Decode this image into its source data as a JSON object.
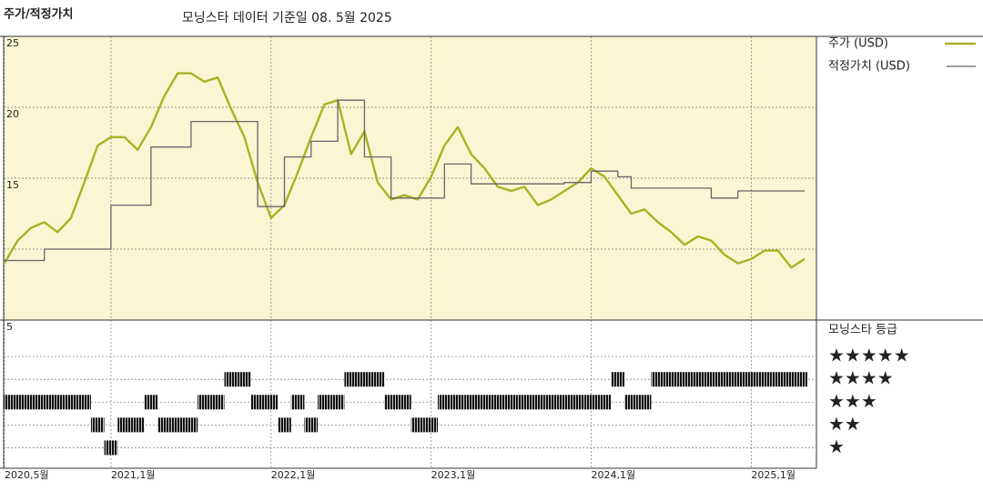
{
  "chart_data": [
    {
      "type": "line",
      "title": "주가/적정가치",
      "subtitle": "모닝스타 데이터 기준일 08. 5월 2025",
      "x": [
        "2020-05",
        "2020-06",
        "2020-07",
        "2020-08",
        "2020-09",
        "2020-10",
        "2020-11",
        "2020-12",
        "2021-01",
        "2021-02",
        "2021-03",
        "2021-04",
        "2021-05",
        "2021-06",
        "2021-07",
        "2021-08",
        "2021-09",
        "2021-10",
        "2021-11",
        "2021-12",
        "2022-01",
        "2022-02",
        "2022-03",
        "2022-04",
        "2022-05",
        "2022-06",
        "2022-07",
        "2022-08",
        "2022-09",
        "2022-10",
        "2022-11",
        "2022-12",
        "2023-01",
        "2023-02",
        "2023-03",
        "2023-04",
        "2023-05",
        "2023-06",
        "2023-07",
        "2023-08",
        "2023-09",
        "2023-10",
        "2023-11",
        "2023-12",
        "2024-01",
        "2024-02",
        "2024-03",
        "2024-04",
        "2024-05",
        "2024-06",
        "2024-07",
        "2024-08",
        "2024-09",
        "2024-10",
        "2024-11",
        "2024-12",
        "2025-01",
        "2025-02",
        "2025-03",
        "2025-04",
        "2025-05"
      ],
      "series": [
        {
          "name": "주가 (USD)",
          "color": "#a9b225",
          "values": [
            9.0,
            10.6,
            11.5,
            11.9,
            11.2,
            12.2,
            14.7,
            17.3,
            17.9,
            17.9,
            17.0,
            18.6,
            20.8,
            22.4,
            22.4,
            21.8,
            22.1,
            19.9,
            17.9,
            14.7,
            12.2,
            13.1,
            15.4,
            17.9,
            20.2,
            20.5,
            16.7,
            18.3,
            14.7,
            13.5,
            13.8,
            13.5,
            15.1,
            17.3,
            18.6,
            16.7,
            15.7,
            14.4,
            14.1,
            14.4,
            13.1,
            13.5,
            14.1,
            14.7,
            15.7,
            15.1,
            13.8,
            12.5,
            12.8,
            11.9,
            11.2,
            10.3,
            10.9,
            10.6,
            9.6,
            9.0,
            9.3,
            9.9,
            9.9,
            8.7,
            9.3
          ]
        },
        {
          "name": "적정가치 (USD)",
          "color": "#666666",
          "values": [
            9.2,
            9.2,
            9.2,
            10.0,
            10.0,
            10.0,
            10.0,
            10.0,
            13.1,
            13.1,
            13.1,
            17.2,
            17.2,
            17.2,
            19.0,
            19.0,
            19.0,
            19.0,
            19.0,
            13.0,
            13.0,
            16.5,
            16.5,
            17.6,
            17.6,
            20.5,
            20.5,
            16.5,
            16.5,
            13.6,
            13.6,
            13.6,
            13.6,
            16.0,
            16.0,
            14.6,
            14.6,
            14.6,
            14.6,
            14.6,
            14.6,
            14.6,
            14.7,
            14.7,
            15.5,
            15.5,
            15.1,
            14.3,
            14.3,
            14.3,
            14.3,
            14.3,
            14.3,
            13.6,
            13.6,
            14.1,
            14.1,
            14.1,
            14.1,
            14.1,
            14.1
          ]
        }
      ],
      "ylim": [
        5,
        25
      ],
      "yticks": [
        5,
        {
          "value": 10,
          "label": null
        },
        15,
        20,
        25
      ],
      "xticks": [
        {
          "value": "2020-05",
          "label": "2020,5월"
        },
        {
          "value": "2021-01",
          "label": "2021,1월"
        },
        {
          "value": "2022-01",
          "label": "2022,1월"
        },
        {
          "value": "2023-01",
          "label": "2023,1월"
        },
        {
          "value": "2024-01",
          "label": "2024,1월"
        },
        {
          "value": "2025-01",
          "label": "2025,1월"
        }
      ],
      "grid": true,
      "background": "#faf6d3"
    },
    {
      "type": "rating",
      "title": "모닝스타 등급",
      "color": "#111111",
      "values": [
        3,
        3,
        3,
        3,
        3,
        3,
        3,
        2,
        1,
        2,
        2,
        3,
        2,
        2,
        2,
        3,
        3,
        4,
        4,
        3,
        3,
        2,
        3,
        2,
        3,
        3,
        4,
        4,
        4,
        3,
        3,
        2,
        2,
        3,
        3,
        3,
        3,
        3,
        3,
        3,
        3,
        3,
        3,
        3,
        3,
        3,
        4,
        3,
        3,
        4,
        4,
        4,
        4,
        4,
        4,
        4,
        4,
        4,
        4,
        4,
        4
      ],
      "ylim": [
        0.1,
        6.6
      ],
      "yticks": [
        {
          "value": 5,
          "label": "★★★★★"
        },
        {
          "value": 4,
          "label": "★★★★"
        },
        {
          "value": 3,
          "label": "★★★"
        },
        {
          "value": 2,
          "label": "★★"
        },
        {
          "value": 1,
          "label": "★"
        }
      ]
    }
  ]
}
